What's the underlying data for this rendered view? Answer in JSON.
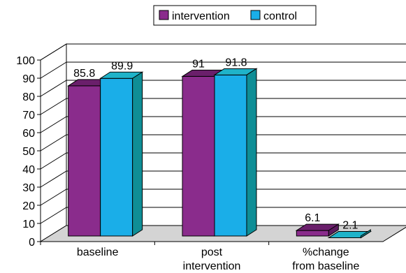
{
  "chart_data": {
    "type": "bar",
    "categories": [
      [
        "baseline"
      ],
      [
        "post",
        "intervention"
      ],
      [
        "%change",
        "from baseline"
      ]
    ],
    "series": [
      {
        "name": "intervention",
        "values": [
          85.8,
          91,
          6.1
        ],
        "color": "#8a2c8c",
        "top_color": "#6a1f6b",
        "side_color": "#5c1a5e"
      },
      {
        "name": "control",
        "values": [
          89.9,
          91.8,
          2.1
        ],
        "color": "#1aaee8",
        "top_color": "#1fb3c9",
        "side_color": "#0f8e96"
      }
    ],
    "data_labels": [
      [
        "85.8",
        "91",
        "6.1"
      ],
      [
        "89.9",
        "91.8",
        "2.1"
      ]
    ],
    "yticks": [
      "0",
      "10",
      "20",
      "30",
      "40",
      "50",
      "60",
      "70",
      "80",
      "90",
      "100"
    ],
    "ylim": [
      0,
      100
    ],
    "grid": true,
    "legend_position": "top-center",
    "style": "3d-clustered-bar",
    "wall_color": "#d4d4d4"
  }
}
